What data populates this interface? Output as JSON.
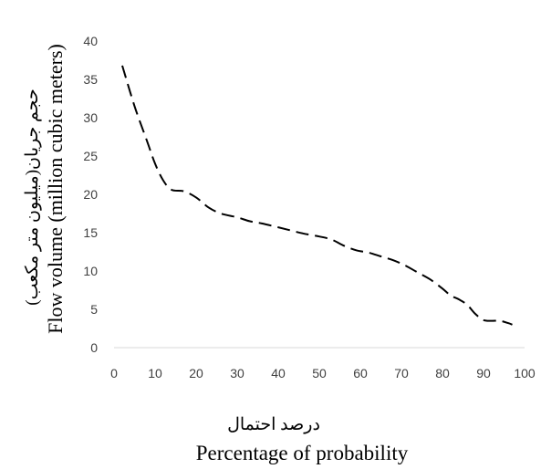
{
  "chart_data": {
    "type": "line",
    "xlabel_fa": "درصد احتمال",
    "xlabel": "Percentage of probability",
    "ylabel_fa": "حجم جریان(میلیون متر مکعب)",
    "ylabel": "Flow volume (million cubic meters)",
    "xlim": [
      0,
      100
    ],
    "ylim": [
      0,
      40
    ],
    "x_ticks": [
      "0",
      "10",
      "20",
      "30",
      "40",
      "50",
      "60",
      "70",
      "80",
      "90",
      "100"
    ],
    "y_ticks": [
      "0",
      "5",
      "10",
      "15",
      "20",
      "25",
      "30",
      "35",
      "40"
    ],
    "grid": false,
    "legend": "none",
    "line_style": "dashed",
    "series": [
      {
        "color": "#000000",
        "x": [
          2,
          5,
          8,
          10,
          12,
          14,
          17,
          20,
          23,
          26,
          30,
          33,
          36,
          40,
          43,
          46,
          50,
          53,
          56,
          59,
          62,
          65,
          68,
          71,
          74,
          77,
          80,
          82,
          84,
          86,
          88,
          90,
          92,
          94,
          96,
          97
        ],
        "y": [
          36.8,
          31.5,
          27,
          24,
          21.8,
          20.6,
          20.4,
          19.6,
          18.3,
          17.5,
          17,
          16.5,
          16.2,
          15.7,
          15.3,
          14.9,
          14.5,
          14.1,
          13.3,
          12.7,
          12.4,
          11.9,
          11.4,
          10.7,
          9.8,
          8.9,
          7.7,
          6.8,
          6.3,
          5.6,
          4.4,
          3.6,
          3.5,
          3.5,
          3.2,
          3
        ]
      }
    ]
  }
}
